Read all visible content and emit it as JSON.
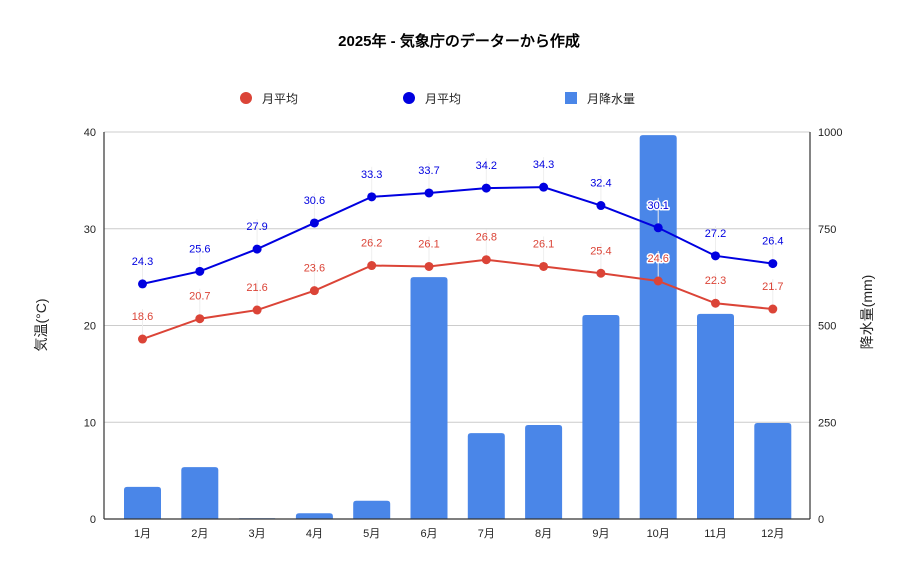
{
  "chart_data": {
    "type": "bar+line",
    "title": "2025年 - 気象庁のデーターから作成",
    "categories": [
      "1月",
      "2月",
      "3月",
      "4月",
      "5月",
      "6月",
      "7月",
      "8月",
      "9月",
      "10月",
      "11月",
      "12月"
    ],
    "series": [
      {
        "name": "月平均",
        "kind": "line",
        "axis": "left",
        "color": "#db4437",
        "values": [
          18.6,
          20.7,
          21.6,
          23.6,
          26.2,
          26.1,
          26.8,
          26.1,
          25.4,
          24.6,
          22.3,
          21.7
        ]
      },
      {
        "name": "月平均",
        "kind": "line",
        "axis": "left",
        "color": "#0000e0",
        "values": [
          24.3,
          25.6,
          27.9,
          30.6,
          33.3,
          33.7,
          34.2,
          34.3,
          32.4,
          30.1,
          27.2,
          26.4
        ]
      },
      {
        "name": "月降水量",
        "kind": "bar",
        "axis": "right",
        "color": "#4a86e8",
        "values": [
          83,
          134,
          1,
          15,
          47,
          625,
          222,
          243,
          527,
          992,
          530,
          248
        ]
      }
    ],
    "left_axis": {
      "label": "気温(°C)",
      "ylim": [
        0,
        40
      ],
      "ticks": [
        0,
        10,
        20,
        30,
        40
      ]
    },
    "right_axis": {
      "label": "降水量(mm)",
      "ylim": [
        0,
        1000
      ],
      "ticks": [
        0,
        250,
        500,
        750,
        1000
      ]
    },
    "xlabel": "",
    "grid": true,
    "legend_position": "top",
    "data_labels": true,
    "halo_label_indices": {
      "series0": [
        9
      ],
      "series1": [
        9
      ]
    }
  }
}
